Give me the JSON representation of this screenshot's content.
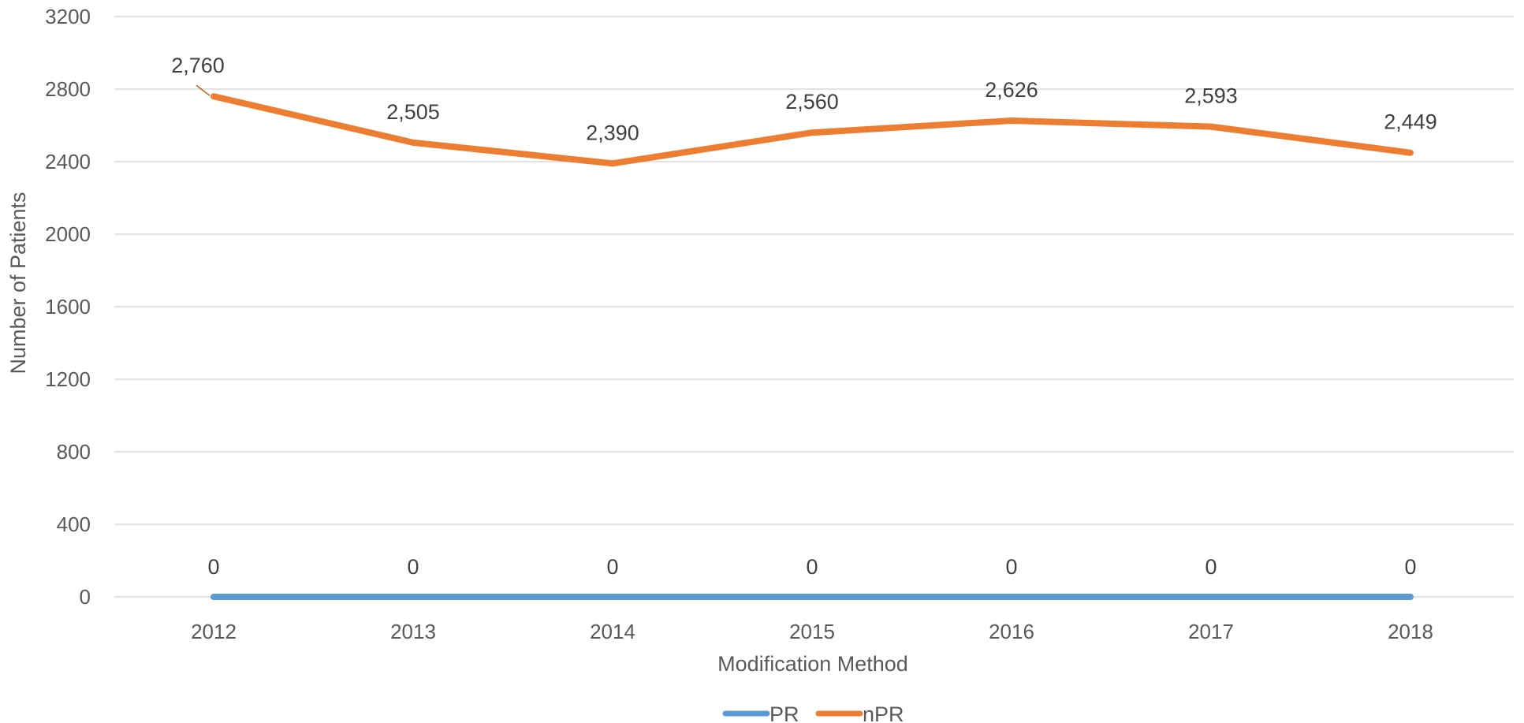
{
  "chart_data": {
    "type": "line",
    "title": "",
    "xlabel": "Modification Method",
    "ylabel": "Number of Patients",
    "categories": [
      "2012",
      "2013",
      "2014",
      "2015",
      "2016",
      "2017",
      "2018"
    ],
    "ylim": [
      0,
      3200
    ],
    "yticks": [
      "0",
      "400",
      "800",
      "1200",
      "1600",
      "2000",
      "2400",
      "2800",
      "3200"
    ],
    "grid": true,
    "legend_position": "bottom",
    "series": [
      {
        "name": "PR",
        "color": "#5B9BD5",
        "values": [
          0,
          0,
          0,
          0,
          0,
          0,
          0
        ],
        "labels": [
          "0",
          "0",
          "0",
          "0",
          "0",
          "0",
          "0"
        ]
      },
      {
        "name": "nPR",
        "color": "#ED7D31",
        "values": [
          2760,
          2505,
          2390,
          2560,
          2626,
          2593,
          2449
        ],
        "labels": [
          "2,760",
          "2,505",
          "2,390",
          "2,560",
          "2,626",
          "2,593",
          "2,449"
        ]
      }
    ]
  }
}
